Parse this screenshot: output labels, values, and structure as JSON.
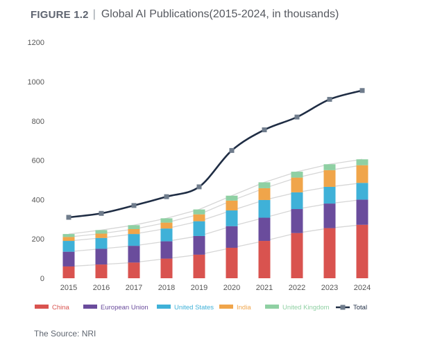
{
  "figure": {
    "label": "FIGURE 1.2",
    "separator": "|",
    "title": "Global AI Publications(2015-2024, in thousands)"
  },
  "source": "The Source: NRI",
  "colors": {
    "China": "#d9534f",
    "European Union": "#6a4c9c",
    "United States": "#3fb1d8",
    "India": "#f0a54a",
    "United Kingdom": "#8fd0a3",
    "Total": "#1f2d44",
    "connector": "#d6d6d6",
    "axis_text": "#555555",
    "marker": "#6f7c8c"
  },
  "chart_data": {
    "type": "bar",
    "stacked": true,
    "title": "Global AI Publications(2015-2024, in thousands)",
    "categories": [
      "2015",
      "2016",
      "2017",
      "2018",
      "2019",
      "2020",
      "2021",
      "2022",
      "2023",
      "2024"
    ],
    "series": [
      {
        "name": "China",
        "values": [
          60,
          70,
          80,
          100,
          120,
          155,
          190,
          230,
          255,
          272
        ]
      },
      {
        "name": "European Union",
        "values": [
          75,
          80,
          85,
          88,
          95,
          110,
          118,
          122,
          125,
          128
        ]
      },
      {
        "name": "United States",
        "values": [
          55,
          55,
          60,
          65,
          75,
          80,
          90,
          85,
          85,
          85
        ]
      },
      {
        "name": "India",
        "values": [
          20,
          22,
          25,
          30,
          35,
          50,
          60,
          75,
          85,
          90
        ]
      },
      {
        "name": "United Kingdom",
        "values": [
          15,
          18,
          20,
          22,
          25,
          25,
          30,
          30,
          30,
          30
        ]
      }
    ],
    "line": {
      "name": "Total",
      "values": [
        310,
        330,
        370,
        415,
        465,
        650,
        755,
        820,
        910,
        955
      ]
    },
    "y_ticks": [
      0,
      200,
      400,
      600,
      800,
      1000,
      1200
    ],
    "ylim": [
      0,
      1200
    ],
    "grid": false,
    "legend_position": "bottom"
  }
}
